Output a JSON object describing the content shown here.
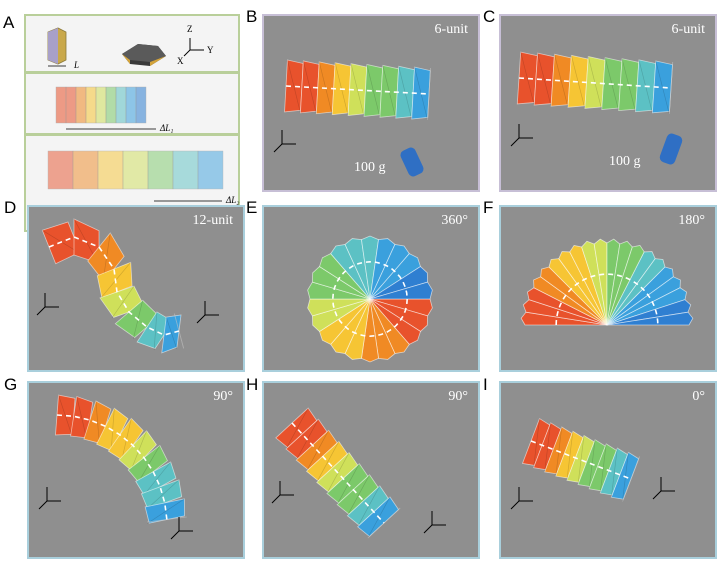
{
  "panels": {
    "a": {
      "letter": "A",
      "length_label": "L",
      "stretch1_label": "ΔL₁",
      "stretch2_label": "ΔL₂"
    },
    "b": {
      "letter": "B",
      "tag": "6-unit",
      "weight": "100 g"
    },
    "c": {
      "letter": "C",
      "tag": "6-unit",
      "weight": "100 g"
    },
    "d": {
      "letter": "D",
      "tag": "12-unit"
    },
    "e": {
      "letter": "E",
      "tag": "360°"
    },
    "f": {
      "letter": "F",
      "tag": "180°"
    },
    "g": {
      "letter": "G",
      "tag": "90°"
    },
    "h": {
      "letter": "H",
      "tag": "90°"
    },
    "i": {
      "letter": "I",
      "tag": "0°"
    }
  },
  "axis_labels": {
    "x": "X",
    "y": "Y",
    "z": "Z"
  },
  "colors": {
    "background_gray": "#8f8f8f",
    "frame_blue": "#a9cfdc",
    "frame_purple": "#c7bfd6",
    "frame_green": "#b9cf9a",
    "rainbow": [
      "#e8522c",
      "#f08a24",
      "#f6c534",
      "#cfe05a",
      "#7cc96a",
      "#5cc1c4",
      "#3aa0dd",
      "#2f7fd1"
    ]
  }
}
